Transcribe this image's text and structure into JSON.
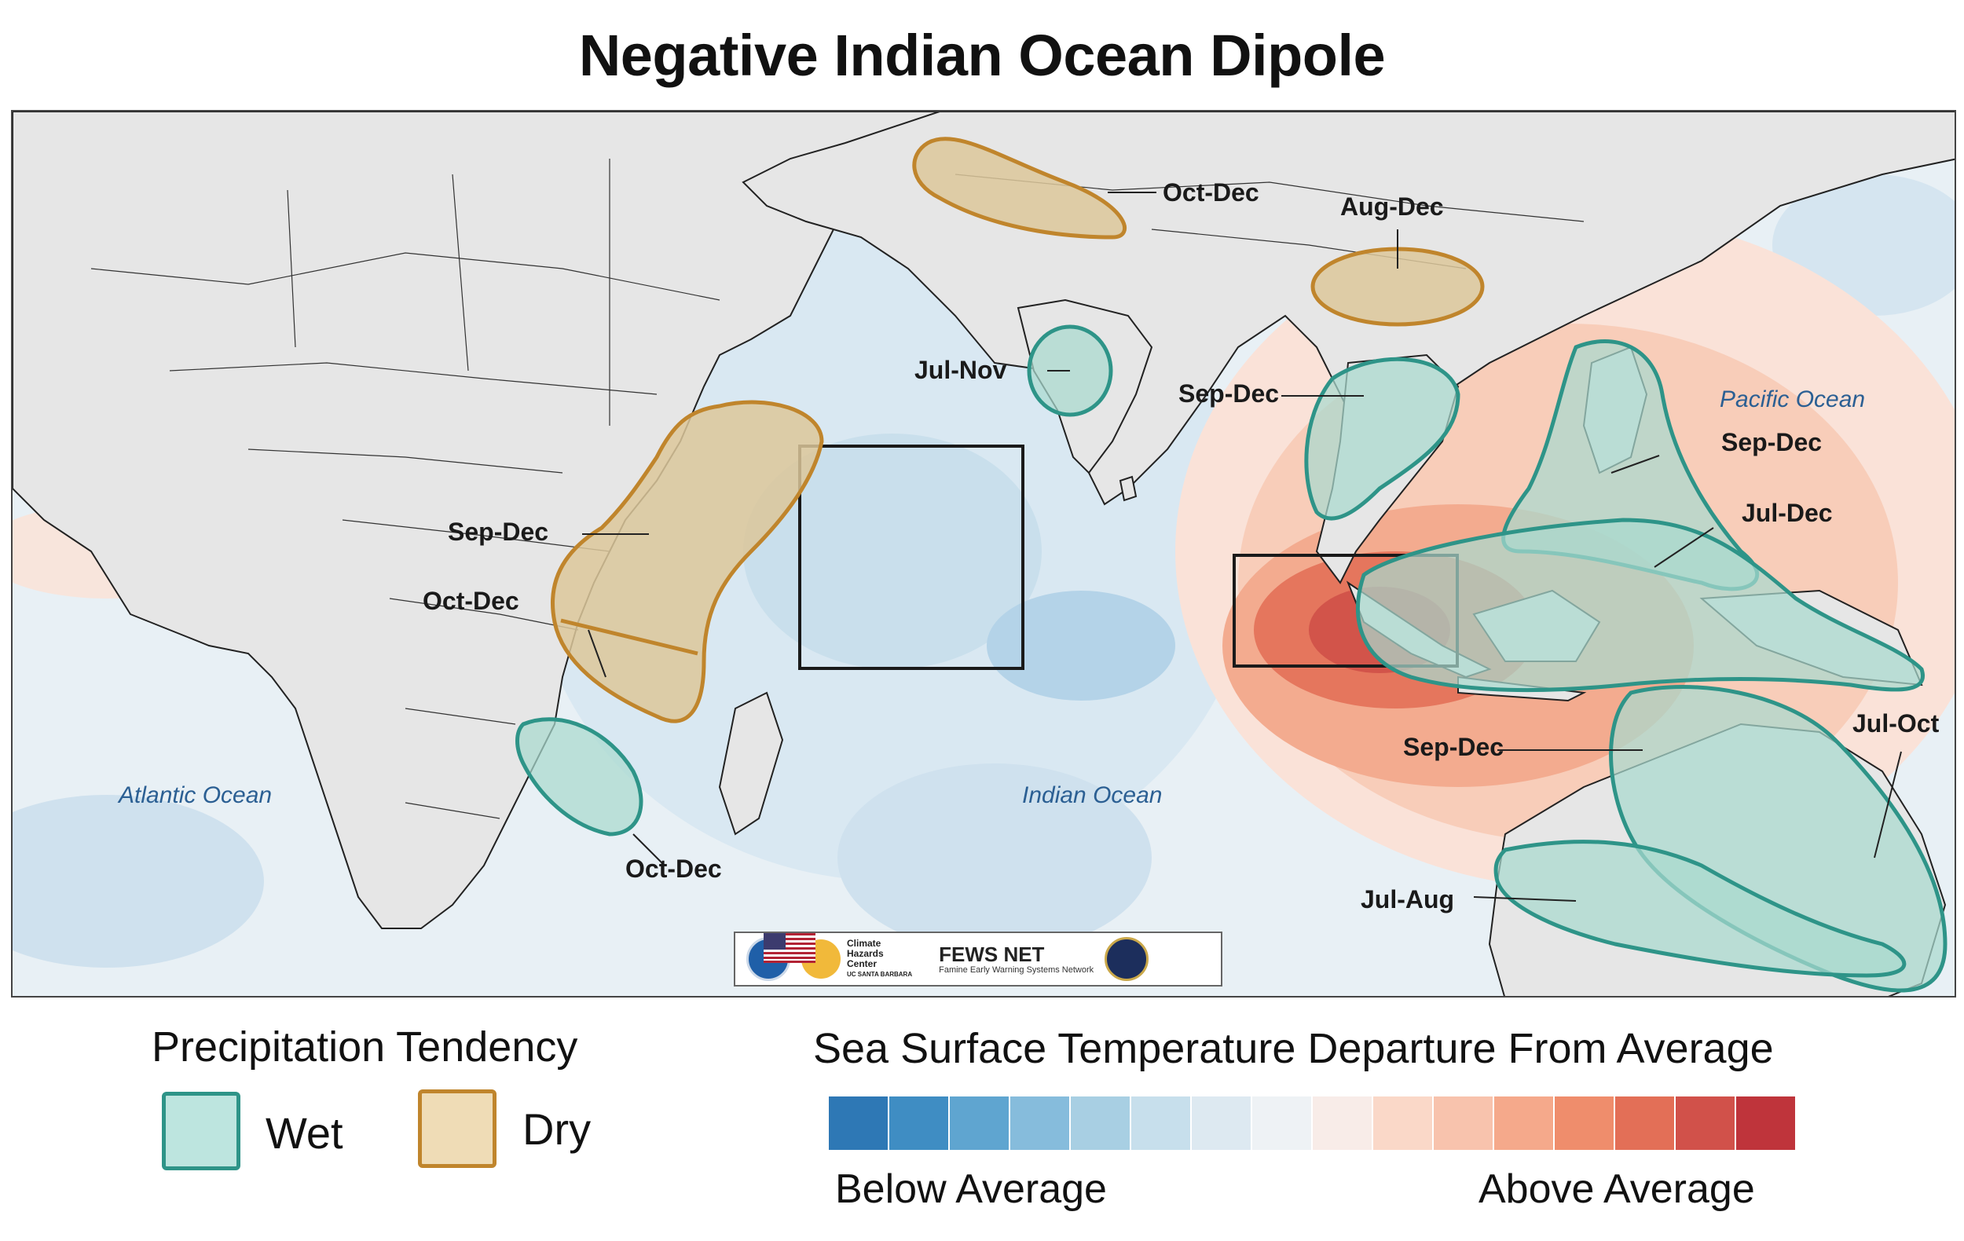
{
  "title": "Negative Indian Ocean Dipole",
  "map": {
    "ocean_labels": {
      "atlantic": "Atlantic Ocean",
      "indian": "Indian Ocean",
      "pacific": "Pacific Ocean"
    },
    "regions": [
      {
        "id": "north-india",
        "tendency": "Dry",
        "season": "Oct-Dec"
      },
      {
        "id": "south-china",
        "tendency": "Dry",
        "season": "Aug-Dec"
      },
      {
        "id": "south-india",
        "tendency": "Wet",
        "season": "Jul-Nov"
      },
      {
        "id": "indochina",
        "tendency": "Wet",
        "season": "Sep-Dec"
      },
      {
        "id": "philippines",
        "tendency": "Wet",
        "season": "Sep-Dec"
      },
      {
        "id": "indonesia",
        "tendency": "Wet",
        "season": "Jul-Dec"
      },
      {
        "id": "east-africa-north",
        "tendency": "Dry",
        "season": "Sep-Dec"
      },
      {
        "id": "east-africa-south",
        "tendency": "Dry",
        "season": "Oct-Dec"
      },
      {
        "id": "southern-africa",
        "tendency": "Wet",
        "season": "Oct-Dec"
      },
      {
        "id": "nw-australia",
        "tendency": "Wet",
        "season": "Sep-Dec"
      },
      {
        "id": "east-australia",
        "tendency": "Wet",
        "season": "Jul-Oct"
      },
      {
        "id": "south-australia",
        "tendency": "Wet",
        "season": "Jul-Aug"
      }
    ]
  },
  "logos": {
    "chc": [
      "Climate",
      "Hazards",
      "Center",
      "UC SANTA BARBARA"
    ],
    "fews_title": "FEWS NET",
    "fews_sub": "Famine Early Warning Systems Network"
  },
  "legend": {
    "precip_title": "Precipitation Tendency",
    "wet": "Wet",
    "dry": "Dry",
    "wet_color": "#bde5df",
    "wet_border": "#2e9488",
    "dry_color": "#efdcb6",
    "dry_border": "#c0852c",
    "sst_title": "Sea Surface Temperature Departure From Average",
    "below": "Below Average",
    "above": "Above Average",
    "sst_colors": [
      "#2e78b5",
      "#3f8dc3",
      "#5fa5d0",
      "#86bcdc",
      "#a8cfe3",
      "#c7dfec",
      "#dde9f1",
      "#eef2f5",
      "#f8ece8",
      "#fad8c8",
      "#f8c3ad",
      "#f5a98b",
      "#ef8d6c",
      "#e36f57",
      "#d1514a",
      "#bf343b"
    ]
  }
}
